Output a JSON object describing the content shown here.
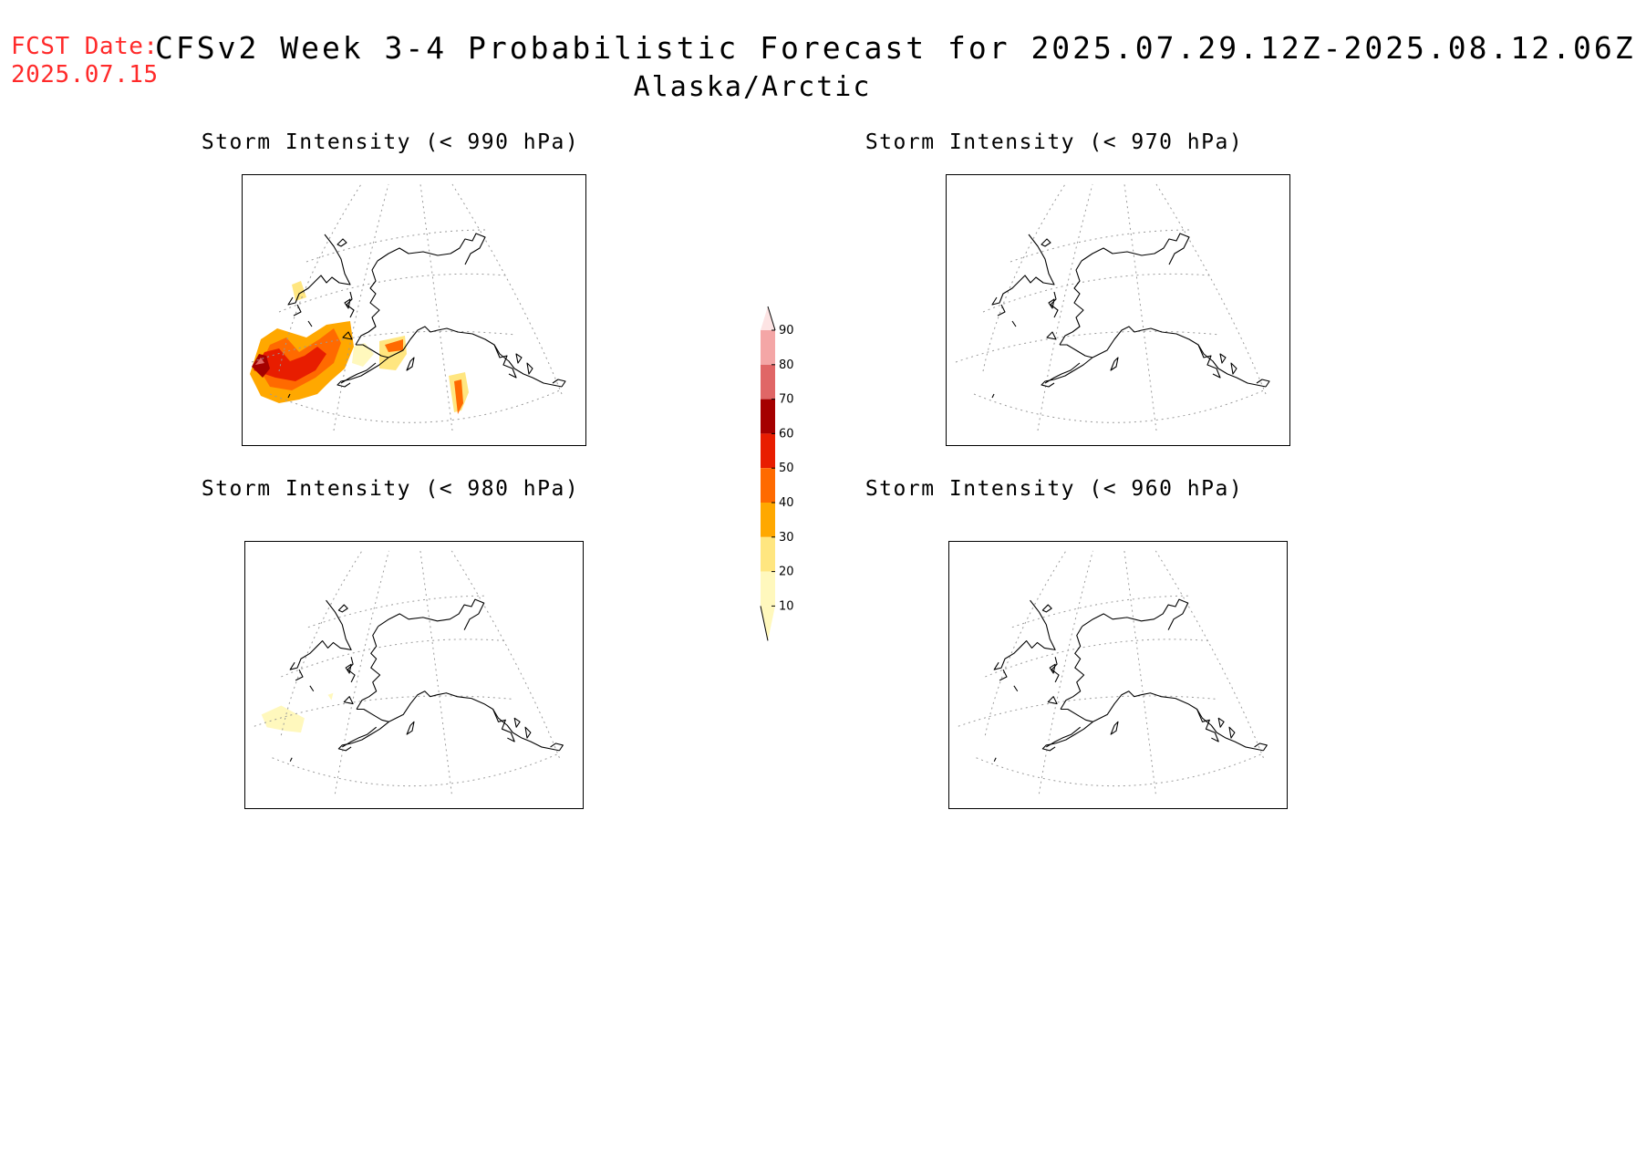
{
  "header": {
    "fcst_label": "FCST Date:",
    "fcst_date": "2025.07.15",
    "title": "CFSv2 Week 3-4 Probabilistic Forecast for 2025.07.29.12Z-2025.08.12.06Z",
    "region": "Alaska/Arctic"
  },
  "panels": [
    {
      "title": "Storm Intensity (< 990 hPa)",
      "threshold_hpa": 990,
      "has_probability_shading": true
    },
    {
      "title": "Storm Intensity (< 970 hPa)",
      "threshold_hpa": 970,
      "has_probability_shading": false
    },
    {
      "title": "Storm Intensity (< 980 hPa)",
      "threshold_hpa": 980,
      "has_probability_shading": true
    },
    {
      "title": "Storm Intensity (< 960 hPa)",
      "threshold_hpa": 960,
      "has_probability_shading": false
    }
  ],
  "colorbar": {
    "labels": [
      "90",
      "80",
      "70",
      "60",
      "50",
      "40",
      "30",
      "20",
      "10"
    ],
    "colors": [
      "#fde4e4",
      "#f4a6a6",
      "#e06666",
      "#a50000",
      "#e81d00",
      "#ff6a00",
      "#ffa800",
      "#ffe680",
      "#fff8bd"
    ]
  }
}
